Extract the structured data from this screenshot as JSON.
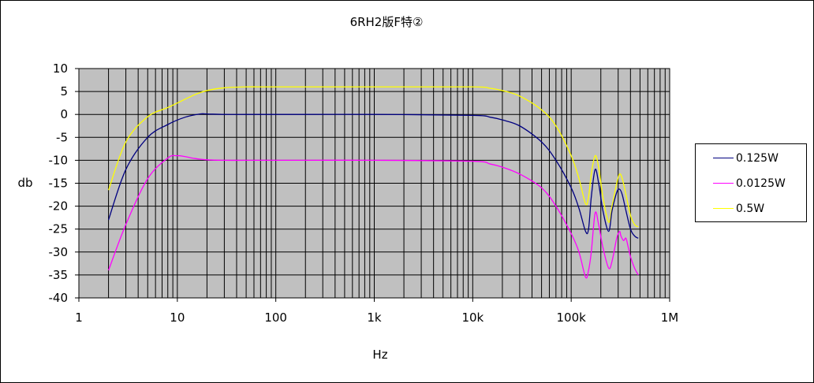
{
  "chart_data": {
    "type": "line",
    "title": "6RH2版F特②",
    "xlabel": "Hz",
    "ylabel": "db",
    "x_scale": "log",
    "xlim": [
      1,
      1000000
    ],
    "ylim": [
      -40,
      10
    ],
    "x_ticks": [
      {
        "value": 1,
        "label": "1"
      },
      {
        "value": 10,
        "label": "10"
      },
      {
        "value": 100,
        "label": "100"
      },
      {
        "value": 1000,
        "label": "1k"
      },
      {
        "value": 10000,
        "label": "10k"
      },
      {
        "value": 100000,
        "label": "100k"
      },
      {
        "value": 1000000,
        "label": "1M"
      }
    ],
    "y_ticks": [
      10,
      5,
      0,
      -5,
      -10,
      -15,
      -20,
      -25,
      -30,
      -35,
      -40
    ],
    "grid": true,
    "plot_background": "#c0c0c0",
    "legend_position": "right",
    "series": [
      {
        "name": "0.125W",
        "color": "#000080",
        "x": [
          2,
          3,
          5,
          8,
          12,
          17,
          20,
          30,
          50,
          100,
          1000,
          10000,
          15000,
          20000,
          30000,
          50000,
          70000,
          100000,
          120000,
          140000,
          150000,
          160000,
          175000,
          190000,
          210000,
          240000,
          260000,
          290000,
          310000,
          330000,
          360000,
          400000,
          440000,
          480000
        ],
        "y": [
          -23,
          -12,
          -5,
          -2.2,
          -0.6,
          0.1,
          0.1,
          0,
          0,
          0,
          0,
          -0.2,
          -0.6,
          -1.2,
          -2.5,
          -6,
          -10,
          -16,
          -20.5,
          -25.5,
          -25,
          -18,
          -12,
          -15,
          -21,
          -25.5,
          -21,
          -17,
          -16.3,
          -17.5,
          -21,
          -25,
          -26.5,
          -27
        ]
      },
      {
        "name": "0.0125W",
        "color": "#ff00ff",
        "x": [
          2,
          3,
          5,
          8,
          10,
          12,
          15,
          20,
          30,
          50,
          100,
          1000,
          10000,
          15000,
          20000,
          30000,
          50000,
          70000,
          100000,
          120000,
          140000,
          150000,
          160000,
          175000,
          190000,
          210000,
          240000,
          260000,
          290000,
          310000,
          320000,
          340000,
          360000,
          380000,
          400000,
          440000,
          480000
        ],
        "y": [
          -34,
          -24,
          -14,
          -9.5,
          -9,
          -9.2,
          -9.6,
          -9.9,
          -10,
          -10,
          -10,
          -10,
          -10.2,
          -10.8,
          -11.5,
          -13,
          -16,
          -20,
          -26,
          -30,
          -35.5,
          -34,
          -30,
          -21.5,
          -24,
          -29,
          -33.5,
          -32,
          -27,
          -25.5,
          -26.5,
          -27.5,
          -27,
          -29,
          -31,
          -33.5,
          -35
        ]
      },
      {
        "name": "0.5W",
        "color": "#ffff00",
        "x": [
          2,
          3,
          5,
          8,
          10,
          15,
          20,
          30,
          50,
          100,
          1000,
          10000,
          15000,
          20000,
          30000,
          50000,
          70000,
          100000,
          120000,
          140000,
          150000,
          160000,
          175000,
          190000,
          210000,
          240000,
          260000,
          290000,
          310000,
          330000,
          360000,
          400000,
          440000,
          480000
        ],
        "y": [
          -16.5,
          -6,
          -0.5,
          1.5,
          2.5,
          4.3,
          5.2,
          5.8,
          6,
          6,
          6,
          6,
          5.7,
          5.2,
          4,
          1,
          -2.5,
          -9,
          -14,
          -19.5,
          -18,
          -13,
          -9,
          -11.5,
          -18,
          -23.5,
          -20,
          -15,
          -13,
          -14,
          -17.5,
          -22,
          -24,
          -24.5
        ]
      }
    ]
  }
}
